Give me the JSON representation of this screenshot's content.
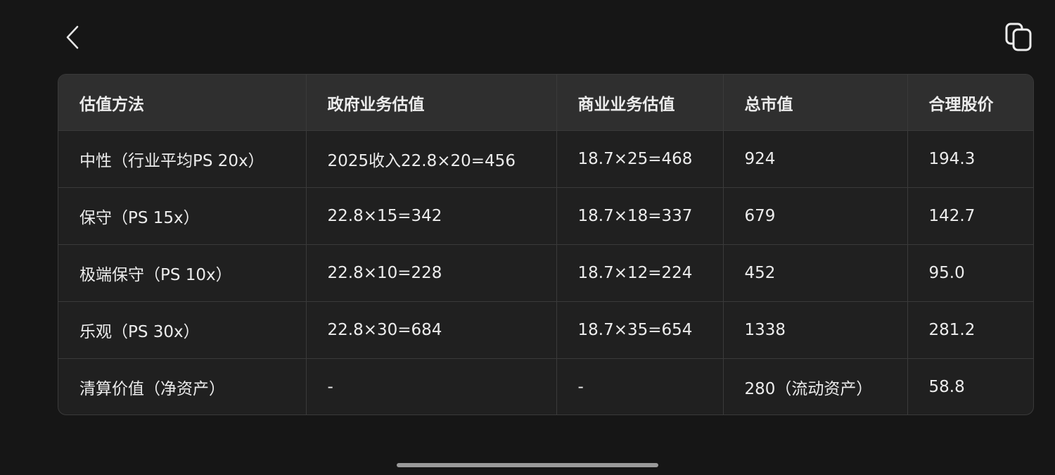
{
  "header": {
    "back_icon": "chevron-left-icon",
    "copy_icon": "copy-icon"
  },
  "table": {
    "columns": [
      "估值方法",
      "政府业务估值",
      "商业业务估值",
      "总市值",
      "合理股价"
    ],
    "rows": [
      [
        "中性（行业平均PS 20x）",
        "2025收入22.8×20=456",
        "18.7×25=468",
        "924",
        "194.3"
      ],
      [
        "保守（PS 15x）",
        "22.8×15=342",
        "18.7×18=337",
        "679",
        "142.7"
      ],
      [
        "极端保守（PS 10x）",
        "22.8×10=228",
        "18.7×12=224",
        "452",
        "95.0"
      ],
      [
        "乐观（PS 30x）",
        "22.8×30=684",
        "18.7×35=654",
        "1338",
        "281.2"
      ],
      [
        "清算价值（净资产）",
        "-",
        "-",
        "280（流动资产）",
        "58.8"
      ]
    ]
  },
  "colors": {
    "background": "#161616",
    "header_bg": "#2f2f2f",
    "row_bg": "#202020",
    "border": "#3a3a3a"
  }
}
